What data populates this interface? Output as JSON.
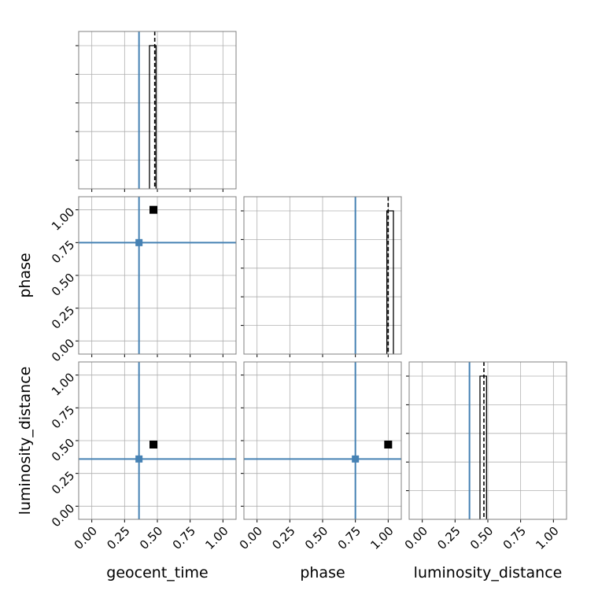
{
  "chart_data": {
    "type": "corner",
    "parameters": [
      "geocent_time",
      "phase",
      "luminosity_distance"
    ],
    "ticks": [
      "0.00",
      "0.25",
      "0.50",
      "0.75",
      "1.00"
    ],
    "xlim": [
      -0.1,
      1.1
    ],
    "ylim": [
      -0.1,
      1.1
    ],
    "grid": true,
    "truth_color": "#4682b4",
    "truths": {
      "geocent_time": 0.36,
      "phase": 0.75,
      "luminosity_distance": 0.36
    },
    "samples": {
      "geocent_time": 0.47,
      "phase": 1.0,
      "luminosity_distance": 0.47
    },
    "histograms": [
      {
        "parameter": "geocent_time",
        "bin": [
          0.44,
          0.49
        ],
        "median": 0.48
      },
      {
        "parameter": "phase",
        "bin": [
          0.99,
          1.04
        ],
        "median": 1.0
      },
      {
        "parameter": "luminosity_distance",
        "bin": [
          0.44,
          0.49
        ],
        "median": 0.47
      }
    ]
  }
}
